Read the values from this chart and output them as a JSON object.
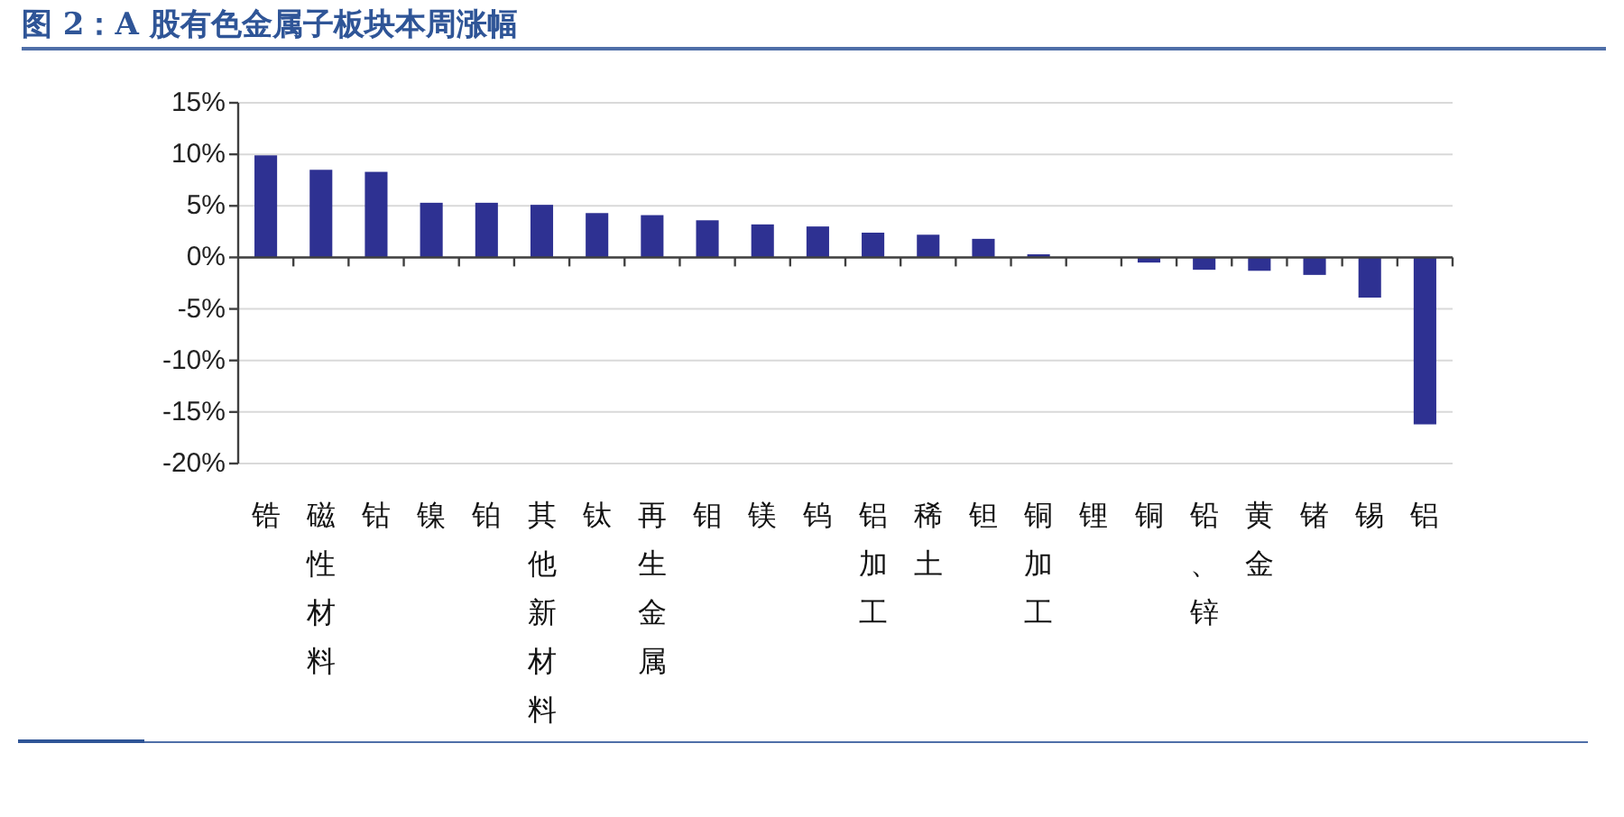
{
  "chart_data": {
    "type": "bar",
    "title": "图 2：A 股有色金属子板块本周涨幅",
    "categories": [
      "锆",
      "磁性材料",
      "钴",
      "镍",
      "铂",
      "其他新材料",
      "钛",
      "再生金属",
      "钼",
      "镁",
      "钨",
      "铝加工",
      "稀土",
      "钽",
      "铜加工",
      "锂",
      "铜",
      "铅、锌",
      "黄金",
      "锗",
      "锡",
      "铝"
    ],
    "values": [
      9.9,
      8.5,
      8.3,
      5.3,
      5.3,
      5.1,
      4.3,
      4.1,
      3.6,
      3.2,
      3.0,
      2.4,
      2.2,
      1.8,
      0.3,
      0,
      -0.5,
      -1.2,
      -1.3,
      -1.7,
      -3.9,
      -16.2
    ],
    "color": "#2e3192",
    "ylim": [
      -20,
      15
    ],
    "yticks": [
      {
        "value": -20,
        "label": "-20%"
      },
      {
        "value": -15,
        "label": "-15%"
      },
      {
        "value": -10,
        "label": "-10%"
      },
      {
        "value": -5,
        "label": "-5%"
      },
      {
        "value": 0,
        "label": "0%"
      },
      {
        "value": 5,
        "label": "5%"
      },
      {
        "value": 10,
        "label": "10%"
      },
      {
        "value": 15,
        "label": "15%"
      }
    ],
    "grid": "y"
  }
}
